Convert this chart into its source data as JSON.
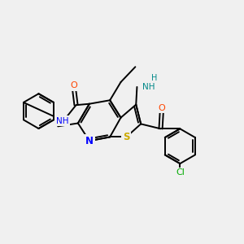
{
  "background_color": "#f0f0f0",
  "bond_color": "#000000",
  "atom_colors": {
    "N": "#0000ff",
    "O": "#ff4400",
    "S": "#ccaa00",
    "Cl": "#00aa00",
    "C": "#000000",
    "H": "#008888"
  },
  "figsize": [
    3.0,
    3.0
  ],
  "dpi": 100,
  "xlim": [
    0,
    10
  ],
  "ylim": [
    0,
    10
  ]
}
